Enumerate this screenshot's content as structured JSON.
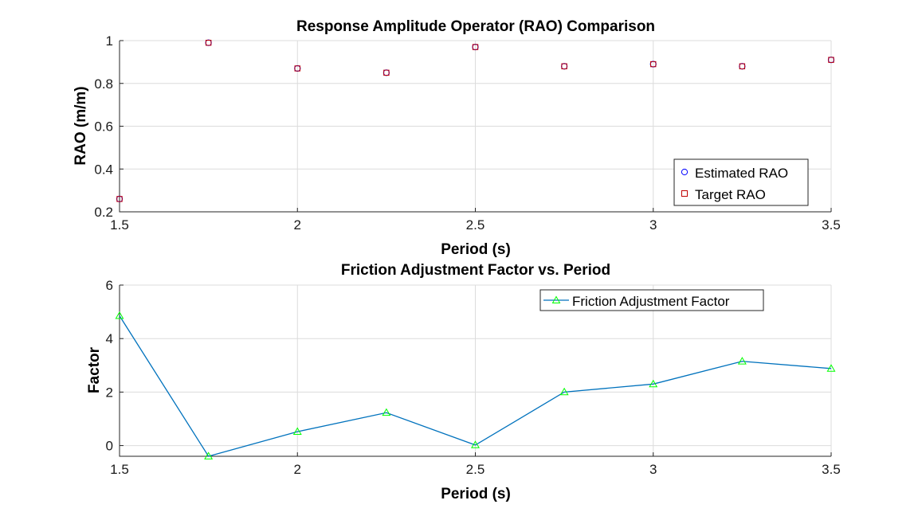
{
  "chart_data": [
    {
      "type": "scatter",
      "title": "Response Amplitude Operator (RAO) Comparison",
      "xlabel": "Period (s)",
      "ylabel": "RAO (m/m)",
      "xlim": [
        1.5,
        3.5
      ],
      "ylim": [
        0.2,
        1.0
      ],
      "xticks": [
        "1.5",
        "2",
        "2.5",
        "3",
        "3.5"
      ],
      "yticks": [
        "0.2",
        "0.4",
        "0.6",
        "0.8",
        "1"
      ],
      "grid": true,
      "legend_position": "bottom-right",
      "x": [
        1.5,
        1.75,
        2.0,
        2.25,
        2.5,
        2.75,
        3.0,
        3.25,
        3.5
      ],
      "series": [
        {
          "name": "Estimated RAO",
          "marker": "circle",
          "color": "#0000ff",
          "values": [
            0.26,
            0.99,
            0.87,
            0.85,
            0.97,
            0.88,
            0.89,
            0.88,
            0.91
          ]
        },
        {
          "name": "Target RAO",
          "marker": "square",
          "color": "#c00000",
          "values": [
            0.26,
            0.99,
            0.87,
            0.85,
            0.97,
            0.88,
            0.89,
            0.88,
            0.91
          ]
        }
      ]
    },
    {
      "type": "line",
      "title": "Friction Adjustment Factor vs. Period",
      "xlabel": "Period (s)",
      "ylabel": "Factor",
      "xlim": [
        1.5,
        3.5
      ],
      "ylim": [
        -0.4,
        6
      ],
      "xticks": [
        "1.5",
        "2",
        "2.5",
        "3",
        "3.5"
      ],
      "yticks": [
        "0",
        "2",
        "4",
        "6"
      ],
      "grid": true,
      "legend_position": "top-right",
      "x": [
        1.5,
        1.75,
        2.0,
        2.25,
        2.5,
        2.75,
        3.0,
        3.25,
        3.5
      ],
      "series": [
        {
          "name": "Friction Adjustment Factor",
          "marker": "triangle",
          "line_color": "#0072bd",
          "marker_color": "#00ff00",
          "values": [
            4.85,
            -0.4,
            0.52,
            1.23,
            0.02,
            2.0,
            2.3,
            3.15,
            2.88
          ]
        }
      ]
    }
  ]
}
